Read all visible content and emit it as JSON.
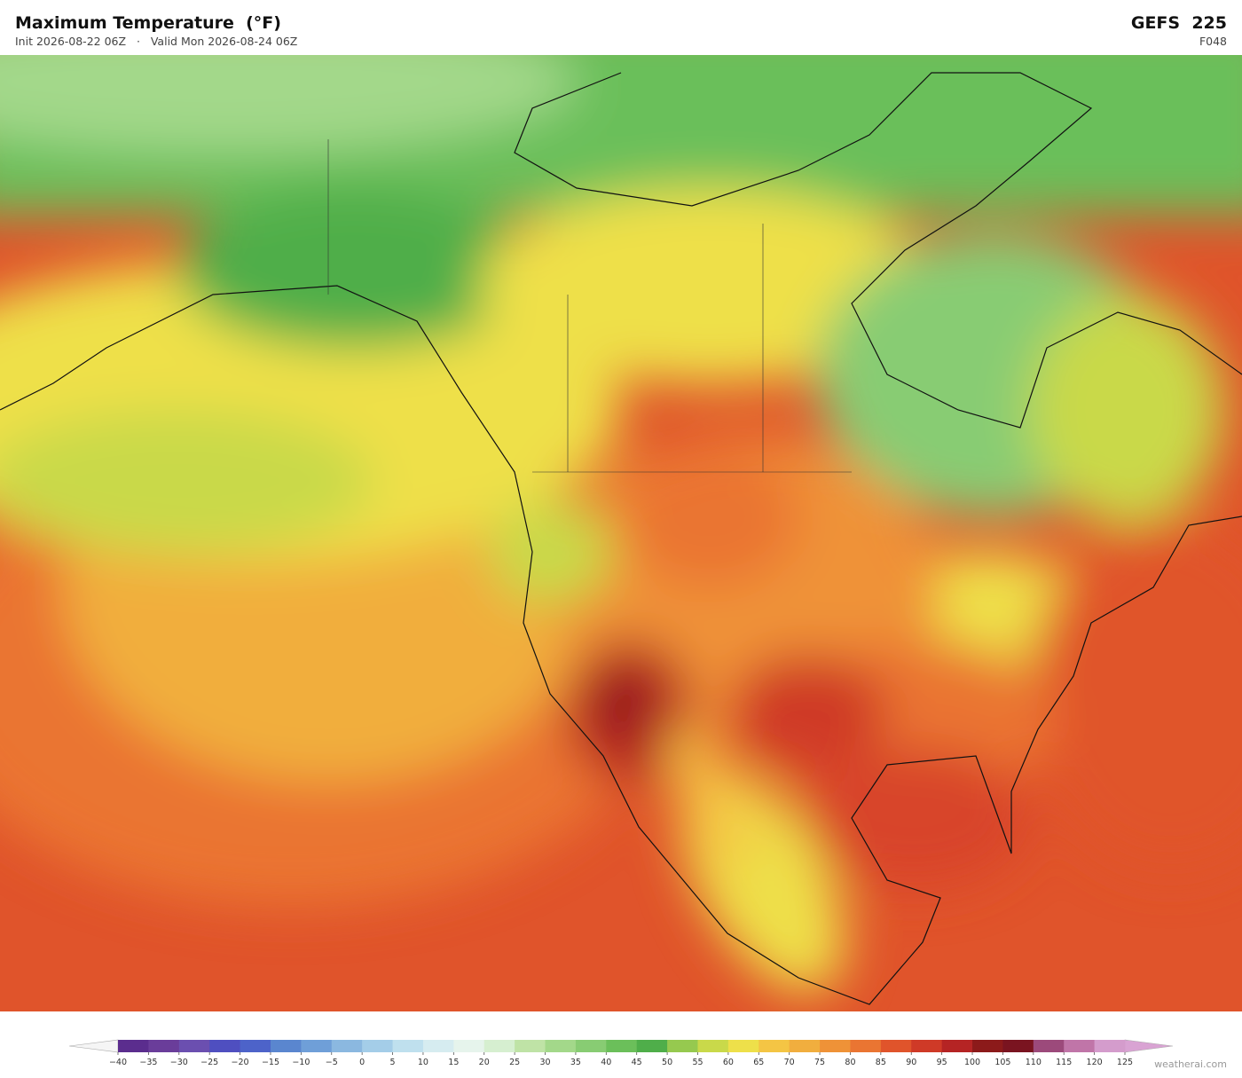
{
  "header": {
    "title": "Maximum Temperature  (°F)",
    "subtitle": "Init 2026-08-22 06Z   ·   Valid Mon 2026-08-24 06Z",
    "model": "GEFS  225",
    "forecast_hour": "F048"
  },
  "legend": {
    "ticks": [
      {
        "value": -40,
        "label": "−40"
      },
      {
        "value": -35,
        "label": "−35"
      },
      {
        "value": -30,
        "label": "−30"
      },
      {
        "value": -25,
        "label": "−25"
      },
      {
        "value": -20,
        "label": "−20"
      },
      {
        "value": -15,
        "label": "−15"
      },
      {
        "value": -10,
        "label": "−10"
      },
      {
        "value": -5,
        "label": "−5"
      },
      0,
      5,
      10,
      15,
      20,
      25,
      30,
      35,
      40,
      45,
      50,
      55,
      60,
      65,
      70,
      75,
      80,
      85,
      90,
      95,
      100,
      105,
      110,
      115,
      120,
      125
    ],
    "colors": [
      "#5b2d8e",
      "#6a3d9a",
      "#6b4fb0",
      "#4f4fc0",
      "#4d63c9",
      "#5a86cf",
      "#6f9fd8",
      "#8bb8e0",
      "#a4cde8",
      "#bfe0ee",
      "#d6ecf0",
      "#e6f4ec",
      "#d6efd0",
      "#bfe3a6",
      "#a3d88a",
      "#88cc73",
      "#6bbf5a",
      "#4fae4a",
      "#96c94f",
      "#c9d94a",
      "#eee04a",
      "#f4c544",
      "#f1ae3e",
      "#ef9237",
      "#ea7532",
      "#e0542b",
      "#cf3a27",
      "#b52424",
      "#8c1a1a",
      "#7a1420",
      "#9c4a7b",
      "#c075a8",
      "#d49ccc"
    ],
    "under_color": "#f5f5f5",
    "over_color": "#d9a3d3"
  },
  "footer": {
    "watermark": "weatherai.com"
  }
}
